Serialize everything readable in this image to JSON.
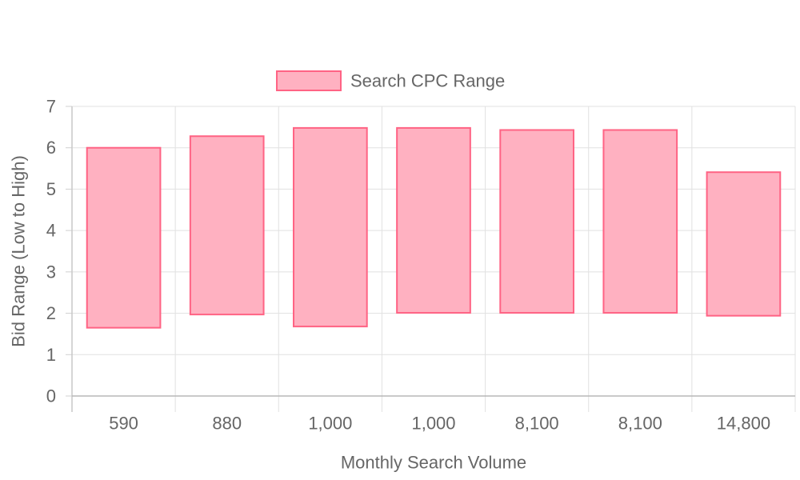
{
  "chart_data": {
    "type": "bar",
    "subtype": "floating-range",
    "title": "",
    "xlabel": "Monthly Search Volume",
    "ylabel": "Bid Range (Low to High)",
    "ylim": [
      0,
      7
    ],
    "yticks": [
      0,
      1,
      2,
      3,
      4,
      5,
      6,
      7
    ],
    "categories": [
      "590",
      "880",
      "1,000",
      "1,000",
      "8,100",
      "8,100",
      "14,800"
    ],
    "series": [
      {
        "name": "Search CPC Range",
        "color": "#ff6384",
        "fill": "#ffb1c1",
        "ranges": [
          [
            1.65,
            6.0
          ],
          [
            1.97,
            6.28
          ],
          [
            1.68,
            6.48
          ],
          [
            2.01,
            6.48
          ],
          [
            2.01,
            6.43
          ],
          [
            2.01,
            6.43
          ],
          [
            1.94,
            5.41
          ]
        ]
      }
    ],
    "grid": true,
    "legend": "top-center"
  }
}
